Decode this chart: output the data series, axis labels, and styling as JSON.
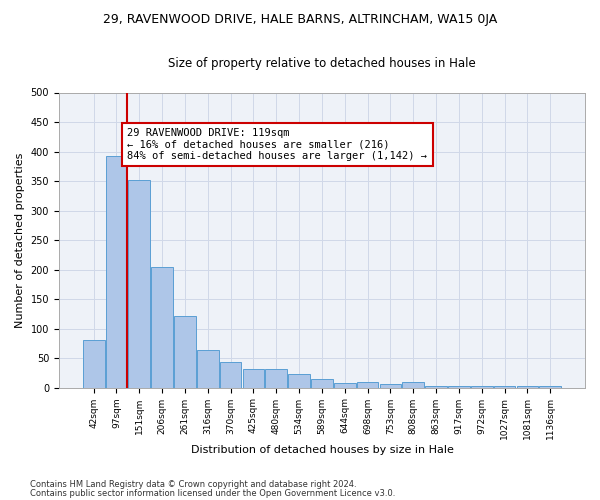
{
  "title": "29, RAVENWOOD DRIVE, HALE BARNS, ALTRINCHAM, WA15 0JA",
  "subtitle": "Size of property relative to detached houses in Hale",
  "xlabel": "Distribution of detached houses by size in Hale",
  "ylabel": "Number of detached properties",
  "categories": [
    "42sqm",
    "97sqm",
    "151sqm",
    "206sqm",
    "261sqm",
    "316sqm",
    "370sqm",
    "425sqm",
    "480sqm",
    "534sqm",
    "589sqm",
    "644sqm",
    "698sqm",
    "753sqm",
    "808sqm",
    "863sqm",
    "917sqm",
    "972sqm",
    "1027sqm",
    "1081sqm",
    "1136sqm"
  ],
  "values": [
    80,
    393,
    351,
    204,
    122,
    64,
    44,
    32,
    32,
    23,
    14,
    8,
    10,
    6,
    10,
    3,
    3,
    3,
    2,
    2,
    3
  ],
  "bar_color": "#aec6e8",
  "bar_edge_color": "#5a9fd4",
  "vline_x": 1.475,
  "vline_color": "#cc0000",
  "annotation_text": "29 RAVENWOOD DRIVE: 119sqm\n← 16% of detached houses are smaller (216)\n84% of semi-detached houses are larger (1,142) →",
  "annotation_box_color": "#ffffff",
  "annotation_box_edge": "#cc0000",
  "ylim": [
    0,
    500
  ],
  "yticks": [
    0,
    50,
    100,
    150,
    200,
    250,
    300,
    350,
    400,
    450,
    500
  ],
  "footer_line1": "Contains HM Land Registry data © Crown copyright and database right 2024.",
  "footer_line2": "Contains public sector information licensed under the Open Government Licence v3.0.",
  "grid_color": "#d0d8e8",
  "bg_color": "#eef2f8",
  "title_fontsize": 9,
  "subtitle_fontsize": 8.5,
  "annotation_fontsize": 7.5,
  "axis_label_fontsize": 8,
  "tick_fontsize": 6.5
}
